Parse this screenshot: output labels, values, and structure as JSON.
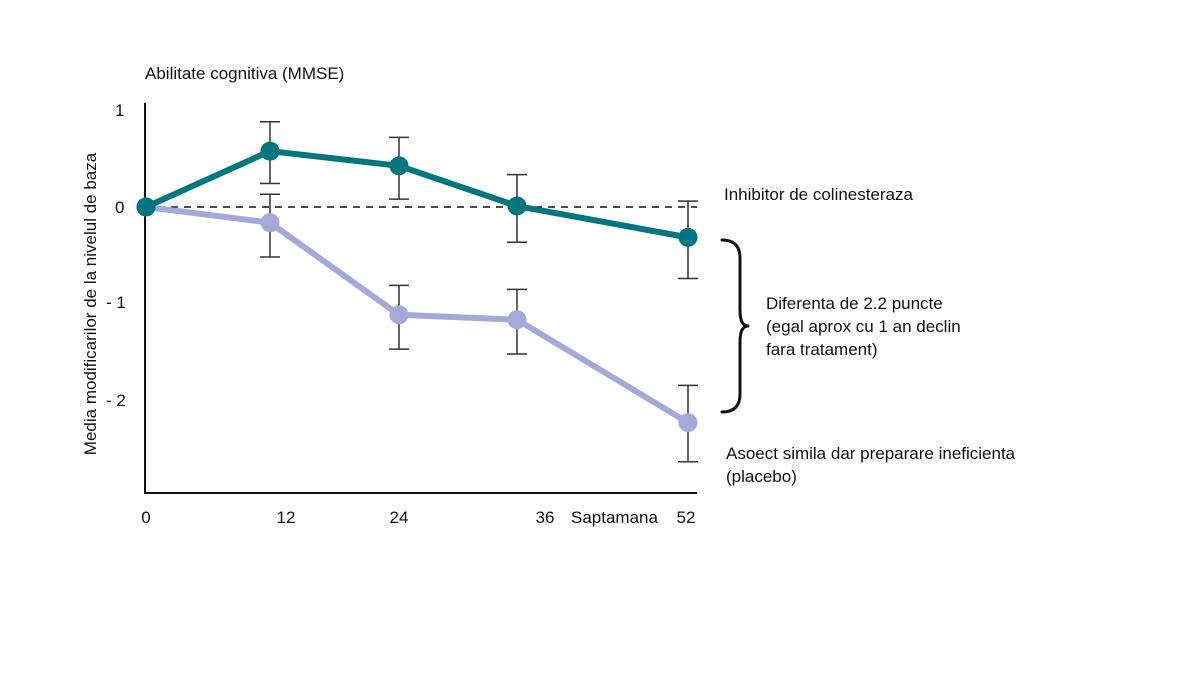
{
  "chart_data": {
    "type": "line",
    "title": "Abilitate cognitiva (MMSE)",
    "ylabel": "Media modificarilor de la nivelul de baza",
    "xlabel": "Saptamana",
    "x_ticks": [
      "0",
      "12",
      "24",
      "36",
      "52"
    ],
    "y_ticks": [
      "1",
      "0",
      "- 1",
      "- 2"
    ],
    "ylim": [
      -2.9,
      1
    ],
    "grid": false,
    "series": [
      {
        "name": "Inhibitor de colinesteraza",
        "color": "#00777e",
        "x": [
          0,
          12,
          24,
          36,
          52
        ],
        "values": [
          0,
          0.57,
          0.42,
          0.01,
          -0.31
        ],
        "error_low": [
          0,
          0.24,
          0.08,
          -0.36,
          -0.73
        ],
        "error_high": [
          0,
          0.87,
          0.71,
          0.33,
          0.06
        ]
      },
      {
        "name": "Asoect simila dar preparare ineficienta",
        "name_line2": "(placebo)",
        "color": "#a5a9da",
        "x": [
          0,
          12,
          24,
          36,
          52
        ],
        "values": [
          0,
          -0.16,
          -1.1,
          -1.15,
          -2.2
        ],
        "error_low": [
          0,
          -0.51,
          -1.45,
          -1.5,
          -2.6
        ],
        "error_high": [
          0,
          0.13,
          -0.8,
          -0.84,
          -1.82
        ]
      }
    ],
    "reference_line": {
      "y": 0,
      "style": "dashed"
    },
    "annotation": {
      "lines": [
        "Diferenta de 2.2 puncte",
        "(egal aprox cu 1 an declin",
        "fara tratament)"
      ]
    }
  }
}
